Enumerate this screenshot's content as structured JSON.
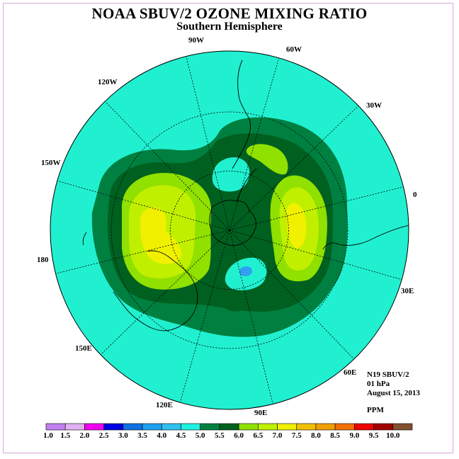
{
  "title": "NOAA SBUV/2 OZONE MIXING RATIO",
  "subtitle": "Southern Hemisphere",
  "info": {
    "satellite": "N19 SBUV/2",
    "level": "01 hPa",
    "date": "August 15, 2013",
    "units": "PPM"
  },
  "longitude_labels": [
    "90W",
    "60W",
    "30W",
    "0",
    "30E",
    "60E",
    "90E",
    "120E",
    "150E",
    "180",
    "150W",
    "120W"
  ],
  "colorbar": {
    "ticks": [
      "1.0",
      "1.5",
      "2.0",
      "2.5",
      "3.0",
      "3.5",
      "4.0",
      "4.5",
      "5.0",
      "5.5",
      "6.0",
      "6.5",
      "7.0",
      "7.5",
      "8.0",
      "8.5",
      "9.0",
      "9.5",
      "10.0"
    ],
    "colors": [
      "#c080f0",
      "#e0b0f0",
      "#f000f0",
      "#0000e0",
      "#1070e0",
      "#20a0f0",
      "#30c0f0",
      "#20f0e0",
      "#008040",
      "#006020",
      "#90e000",
      "#c0f000",
      "#f0f000",
      "#f0c000",
      "#f0a000",
      "#f07000",
      "#f00000",
      "#a00000",
      "#805030"
    ]
  },
  "colors": {
    "background_level": "#20f0d0",
    "level_5_0": "#008040",
    "level_5_5": "#006020",
    "level_6_0": "#90e000",
    "level_6_5": "#c0f000",
    "level_7_0": "#f0f000",
    "level_3_5": "#30a0f0"
  }
}
